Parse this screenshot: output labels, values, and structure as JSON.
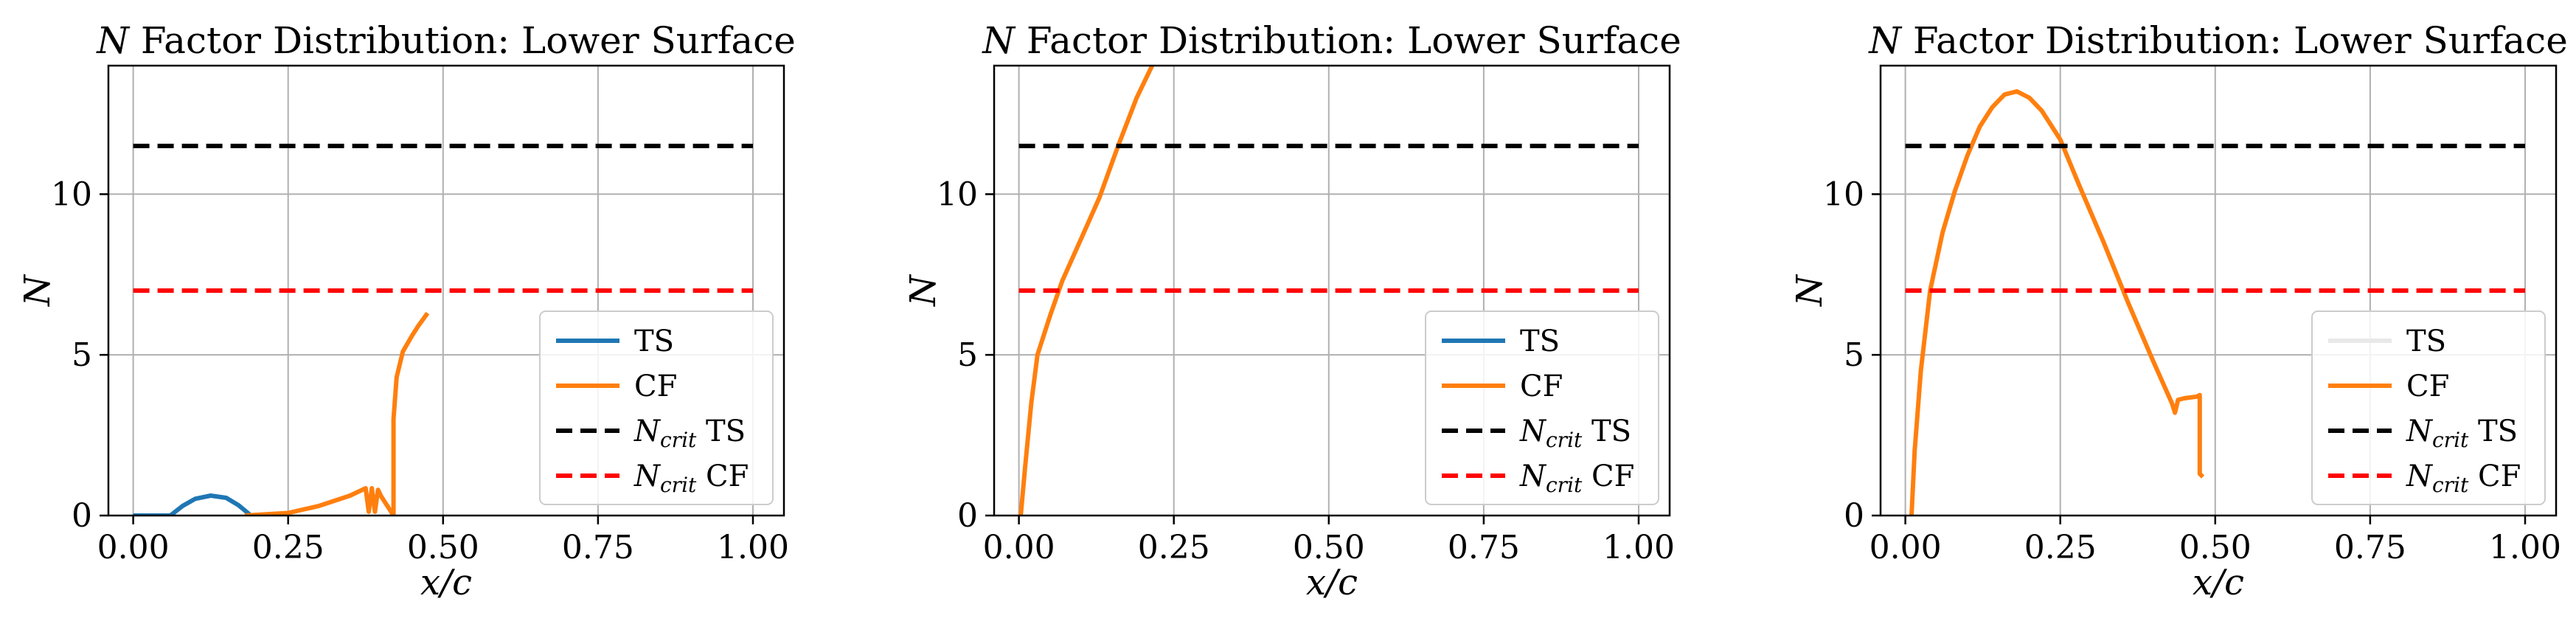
{
  "chart_data": [
    {
      "type": "line",
      "title": "N Factor Distribution: Lower Surface",
      "title_italic": "N",
      "title_rest": " Factor Distribution: Lower Surface",
      "xlabel": "x/c",
      "ylabel": "N",
      "xlim": [
        -0.04,
        1.05
      ],
      "ylim": [
        0,
        14
      ],
      "xticks": [
        "0.00",
        "0.25",
        "0.50",
        "0.75",
        "1.00"
      ],
      "yticks": [
        "0",
        "5",
        "10"
      ],
      "grid": true,
      "legend_position": "lower-right",
      "legend": [
        {
          "key": "ts",
          "pre": "",
          "sub": "",
          "post": "TS"
        },
        {
          "key": "cf",
          "pre": "",
          "sub": "",
          "post": "CF"
        },
        {
          "key": "nts",
          "pre": "N",
          "sub": "crit",
          "post": " TS"
        },
        {
          "key": "ncf",
          "pre": "N",
          "sub": "crit",
          "post": " CF"
        }
      ],
      "series": [
        {
          "name": "TS",
          "color": "#1f77b4",
          "style": "solid",
          "segments": [
            [
              [
                0.0,
                0.0
              ],
              [
                0.06,
                0.0
              ],
              [
                0.08,
                0.3
              ],
              [
                0.1,
                0.52
              ],
              [
                0.125,
                0.62
              ],
              [
                0.15,
                0.55
              ],
              [
                0.17,
                0.32
              ],
              [
                0.19,
                0.0
              ]
            ]
          ]
        },
        {
          "name": "CF",
          "color": "#ff7f0e",
          "style": "solid",
          "segments": [
            [
              [
                0.18,
                0.0
              ],
              [
                0.25,
                0.08
              ],
              [
                0.3,
                0.3
              ],
              [
                0.35,
                0.62
              ],
              [
                0.375,
                0.85
              ],
              [
                0.38,
                0.12
              ],
              [
                0.385,
                0.85
              ],
              [
                0.39,
                0.12
              ],
              [
                0.395,
                0.8
              ],
              [
                0.4,
                0.6
              ],
              [
                0.41,
                0.3
              ],
              [
                0.42,
                0.0
              ]
            ],
            [
              [
                0.42,
                0.0
              ],
              [
                0.42,
                3.0
              ],
              [
                0.425,
                4.3
              ],
              [
                0.435,
                5.1
              ],
              [
                0.45,
                5.6
              ],
              [
                0.46,
                5.9
              ],
              [
                0.475,
                6.3
              ]
            ]
          ]
        },
        {
          "name": "N_crit TS",
          "color": "#000000",
          "style": "dashed",
          "segments": [
            [
              [
                0.0,
                11.5
              ],
              [
                1.0,
                11.5
              ]
            ]
          ]
        },
        {
          "name": "N_crit CF",
          "color": "#ff0000",
          "style": "dashed",
          "segments": [
            [
              [
                0.0,
                7.0
              ],
              [
                1.0,
                7.0
              ]
            ]
          ]
        }
      ]
    },
    {
      "type": "line",
      "title": "N Factor Distribution: Lower Surface",
      "title_italic": "N",
      "title_rest": " Factor Distribution: Lower Surface",
      "xlabel": "x/c",
      "ylabel": "N",
      "xlim": [
        -0.04,
        1.05
      ],
      "ylim": [
        0,
        14
      ],
      "xticks": [
        "0.00",
        "0.25",
        "0.50",
        "0.75",
        "1.00"
      ],
      "yticks": [
        "0",
        "5",
        "10"
      ],
      "grid": true,
      "legend_position": "lower-right",
      "legend": [
        {
          "key": "ts",
          "pre": "",
          "sub": "",
          "post": "TS"
        },
        {
          "key": "cf",
          "pre": "",
          "sub": "",
          "post": "CF"
        },
        {
          "key": "nts",
          "pre": "N",
          "sub": "crit",
          "post": " TS"
        },
        {
          "key": "ncf",
          "pre": "N",
          "sub": "crit",
          "post": " CF"
        }
      ],
      "series": [
        {
          "name": "TS",
          "color": "#1f77b4",
          "style": "solid",
          "segments": []
        },
        {
          "name": "CF",
          "color": "#ff7f0e",
          "style": "solid",
          "segments": [
            [
              [
                0.003,
                0.0
              ],
              [
                0.01,
                1.5
              ],
              [
                0.02,
                3.5
              ],
              [
                0.03,
                5.0
              ],
              [
                0.05,
                6.2
              ],
              [
                0.07,
                7.3
              ],
              [
                0.1,
                8.6
              ],
              [
                0.13,
                9.9
              ],
              [
                0.16,
                11.5
              ],
              [
                0.19,
                13.0
              ],
              [
                0.215,
                14.0
              ]
            ]
          ]
        },
        {
          "name": "N_crit TS",
          "color": "#000000",
          "style": "dashed",
          "segments": [
            [
              [
                0.0,
                11.5
              ],
              [
                1.0,
                11.5
              ]
            ]
          ]
        },
        {
          "name": "N_crit CF",
          "color": "#ff0000",
          "style": "dashed",
          "segments": [
            [
              [
                0.0,
                7.0
              ],
              [
                1.0,
                7.0
              ]
            ]
          ]
        }
      ]
    },
    {
      "type": "line",
      "title": "N Factor Distribution: Lower Surface",
      "title_italic": "N",
      "title_rest": " Factor Distribution: Lower Surface",
      "xlabel": "x/c",
      "ylabel": "N",
      "xlim": [
        -0.04,
        1.05
      ],
      "ylim": [
        0,
        14
      ],
      "xticks": [
        "0.00",
        "0.25",
        "0.50",
        "0.75",
        "1.00"
      ],
      "yticks": [
        "0",
        "5",
        "10"
      ],
      "grid": true,
      "legend_position": "lower-right",
      "legend": [
        {
          "key": "ts",
          "pre": "",
          "sub": "",
          "post": "TS"
        },
        {
          "key": "cf",
          "pre": "",
          "sub": "",
          "post": "CF"
        },
        {
          "key": "nts",
          "pre": "N",
          "sub": "crit",
          "post": " TS"
        },
        {
          "key": "ncf",
          "pre": "N",
          "sub": "crit",
          "post": " CF"
        }
      ],
      "series": [
        {
          "name": "TS",
          "color": "#e8e8e8",
          "style": "solid",
          "segments": []
        },
        {
          "name": "CF",
          "color": "#ff7f0e",
          "style": "solid",
          "segments": [
            [
              [
                0.01,
                0.0
              ],
              [
                0.015,
                2.0
              ],
              [
                0.025,
                4.5
              ],
              [
                0.04,
                7.0
              ],
              [
                0.06,
                8.8
              ],
              [
                0.08,
                10.1
              ],
              [
                0.1,
                11.2
              ],
              [
                0.12,
                12.1
              ],
              [
                0.14,
                12.7
              ],
              [
                0.16,
                13.1
              ],
              [
                0.18,
                13.2
              ],
              [
                0.2,
                13.0
              ],
              [
                0.22,
                12.6
              ],
              [
                0.25,
                11.7
              ],
              [
                0.28,
                10.3
              ],
              [
                0.32,
                8.5
              ],
              [
                0.36,
                6.6
              ],
              [
                0.4,
                4.8
              ],
              [
                0.43,
                3.5
              ],
              [
                0.435,
                3.2
              ],
              [
                0.44,
                3.6
              ],
              [
                0.45,
                3.65
              ],
              [
                0.47,
                3.7
              ],
              [
                0.475,
                3.75
              ],
              [
                0.475,
                1.3
              ],
              [
                0.48,
                1.2
              ]
            ]
          ]
        },
        {
          "name": "N_crit TS",
          "color": "#000000",
          "style": "dashed",
          "segments": [
            [
              [
                0.0,
                11.5
              ],
              [
                1.0,
                11.5
              ]
            ]
          ]
        },
        {
          "name": "N_crit CF",
          "color": "#ff0000",
          "style": "dashed",
          "segments": [
            [
              [
                0.0,
                7.0
              ],
              [
                1.0,
                7.0
              ]
            ]
          ]
        }
      ]
    }
  ]
}
